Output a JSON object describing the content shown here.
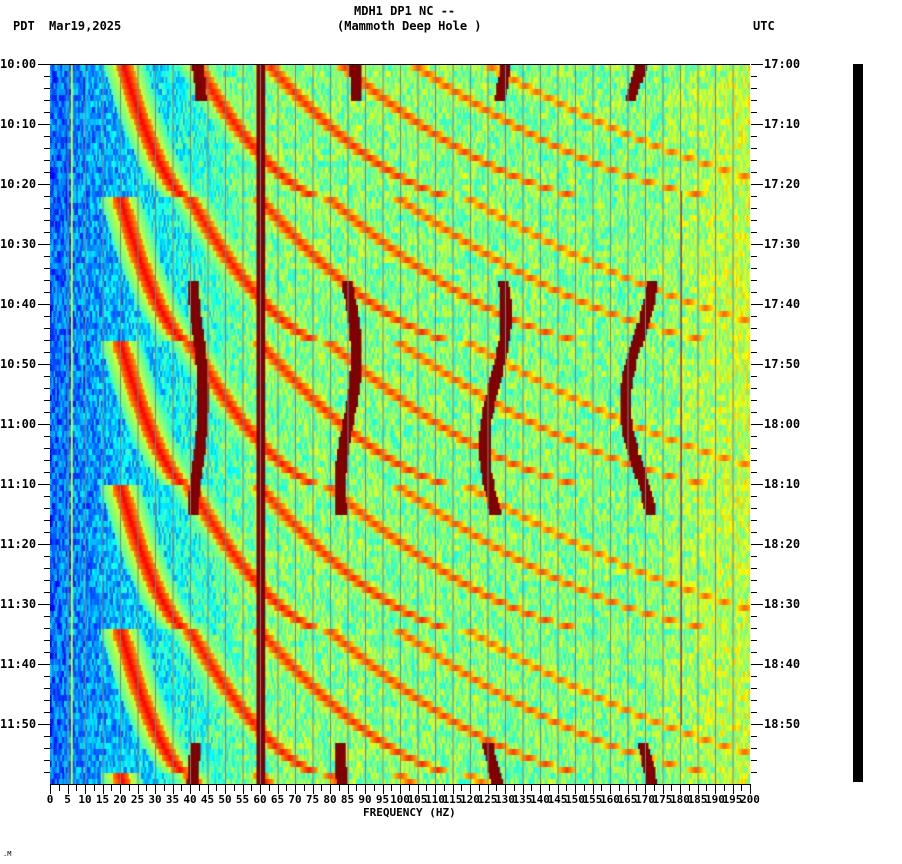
{
  "header": {
    "station": "MDH1 DP1 NC --",
    "site_name": "(Mammoth Deep Hole )",
    "left_timezone": "PDT",
    "date": "Mar19,2025",
    "right_timezone": "UTC"
  },
  "footer": {
    "corner_mark": ".M"
  },
  "colors": {
    "low": "#0050ff",
    "mid_low": "#00e0ff",
    "mid": "#a0ff60",
    "mid_high": "#ffff00",
    "high": "#ff2000",
    "peak": "#8b0000",
    "gridline": "#808080",
    "scalebar": "#000000"
  },
  "chart_data": {
    "type": "heatmap",
    "title": "MDH1 DP1 NC -- (Mammoth Deep Hole )",
    "subtitle": "Mar19,2025",
    "xlabel": "FREQUENCY (HZ)",
    "ylabel_left": "PDT",
    "ylabel_right": "UTC",
    "xlim": [
      0,
      200
    ],
    "x_ticks": [
      0,
      5,
      10,
      15,
      20,
      25,
      30,
      35,
      40,
      45,
      50,
      55,
      60,
      65,
      70,
      75,
      80,
      85,
      90,
      95,
      100,
      105,
      110,
      115,
      120,
      125,
      130,
      135,
      140,
      145,
      150,
      155,
      160,
      165,
      170,
      175,
      180,
      185,
      190,
      195,
      200
    ],
    "y_ticks_left": [
      "10:00",
      "10:10",
      "10:20",
      "10:30",
      "10:40",
      "10:50",
      "11:00",
      "11:10",
      "11:20",
      "11:30",
      "11:40",
      "11:50"
    ],
    "y_ticks_right": [
      "17:00",
      "17:10",
      "17:20",
      "17:30",
      "17:40",
      "17:50",
      "18:00",
      "18:10",
      "18:20",
      "18:30",
      "18:40",
      "18:50"
    ],
    "time_range_local": [
      "10:00",
      "12:00"
    ],
    "time_range_utc": [
      "17:00",
      "19:00"
    ],
    "grid_x_every_hz": 5,
    "colormap": "jet",
    "features": [
      {
        "type": "constant_line",
        "freq_hz": 60,
        "desc": "strong persistent line at 60 Hz"
      },
      {
        "type": "constant_line",
        "freq_hz": 180,
        "desc": "thin line near 180 Hz"
      },
      {
        "type": "constant_line",
        "freq_hz": 6,
        "desc": "faint line near 6 Hz"
      },
      {
        "type": "wandering_line",
        "freq_hz_approx": 42,
        "time_ranges": [
          [
            "10:00",
            "10:06"
          ],
          [
            "10:35",
            "11:15"
          ],
          [
            "11:52",
            "12:00"
          ]
        ]
      },
      {
        "type": "wandering_line",
        "freq_hz_approx": 85,
        "time_ranges": [
          [
            "10:00",
            "10:06"
          ],
          [
            "10:35",
            "11:15"
          ],
          [
            "11:52",
            "12:00"
          ]
        ]
      },
      {
        "type": "wandering_line",
        "freq_hz_approx": 127,
        "time_ranges": [
          [
            "10:00",
            "10:06"
          ],
          [
            "10:35",
            "11:15"
          ],
          [
            "11:52",
            "12:00"
          ]
        ]
      },
      {
        "type": "wandering_line",
        "freq_hz_approx": 168,
        "time_ranges": [
          [
            "10:00",
            "10:06"
          ],
          [
            "10:35",
            "11:15"
          ],
          [
            "11:52",
            "12:00"
          ]
        ]
      },
      {
        "type": "sweeping_harmonics",
        "desc": "repeating descending-frequency arcs with ~20-minute period, harmonics spaced ~20 Hz, fundamental starting ~20 Hz"
      }
    ]
  }
}
